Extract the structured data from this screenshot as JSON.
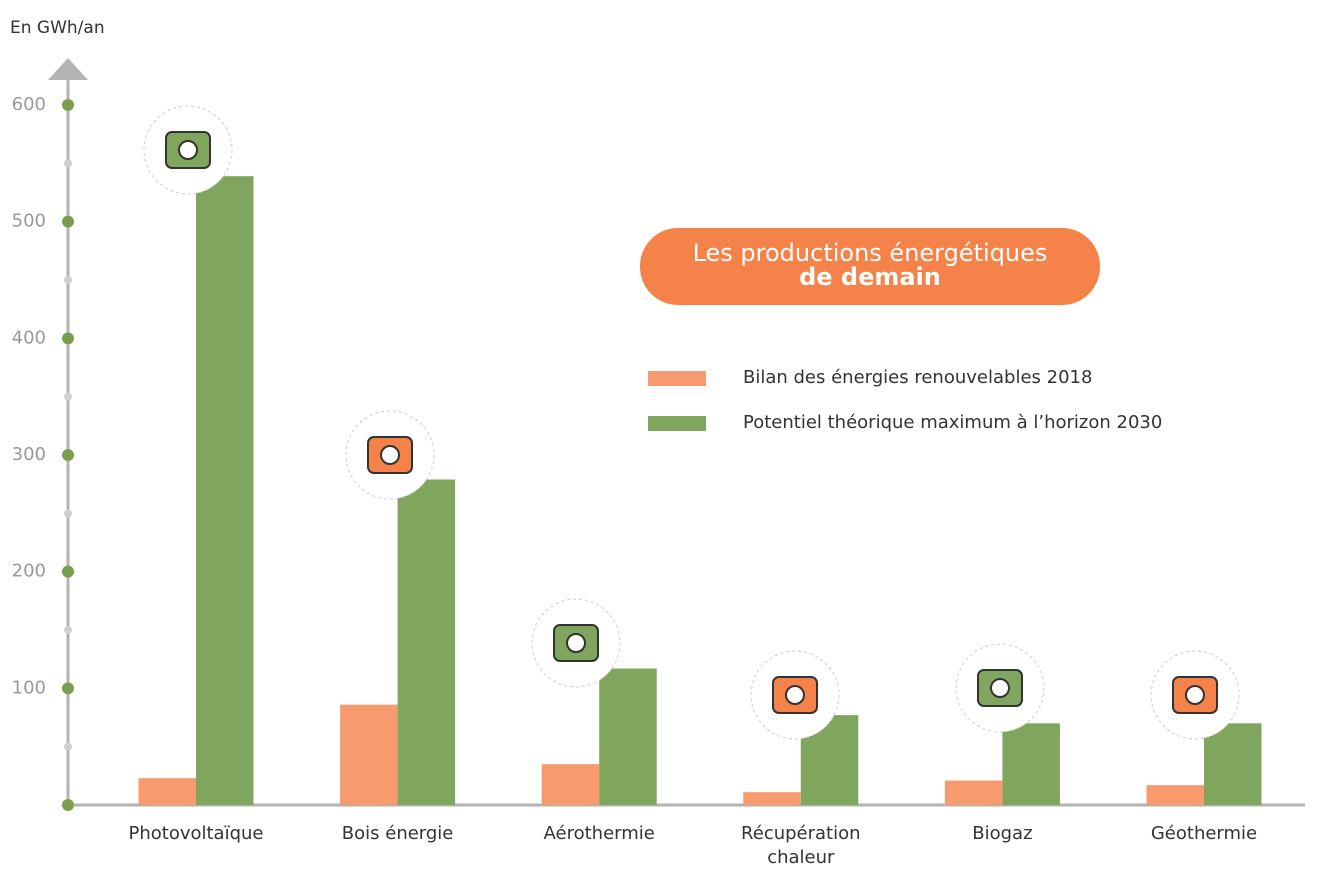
{
  "chart_data": {
    "type": "bar",
    "title": "Les productions énergétiques",
    "title_bold": "de demain",
    "y_axis_label": "En GWh/an",
    "categories": [
      "Photovoltaïque",
      "Bois énergie",
      "Aérothermie",
      "Récupération\nchaleur",
      "Biogaz",
      "Géothermie"
    ],
    "series": [
      {
        "name": "Bilan des énergies renouvelables 2018",
        "color": "#f79a6e",
        "values": [
          23,
          86,
          35,
          11,
          21,
          17
        ]
      },
      {
        "name": "Potentiel théorique maximum à l’horizon 2030",
        "color": "#80a55c",
        "values": [
          539,
          279,
          117,
          77,
          70,
          70
        ]
      }
    ],
    "ylim": [
      0,
      600
    ],
    "yticks": [
      100,
      200,
      300,
      400,
      500,
      600
    ],
    "grid": false
  }
}
